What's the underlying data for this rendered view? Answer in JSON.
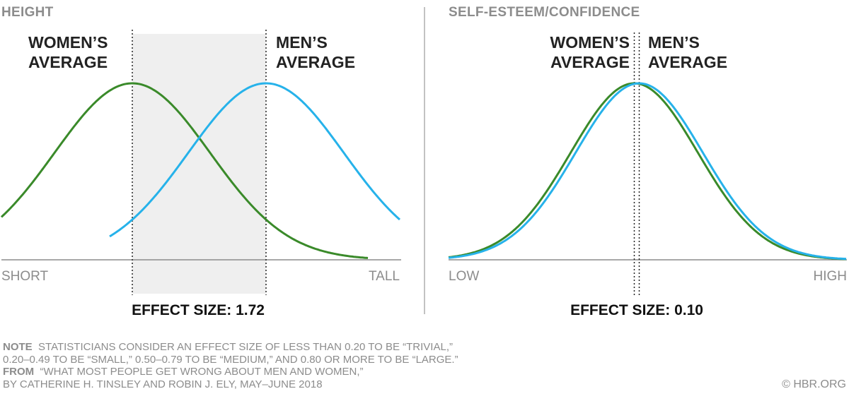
{
  "chart_data": [
    {
      "type": "line",
      "panel_title": "HEIGHT",
      "x_low_label": "SHORT",
      "x_high_label": "TALL",
      "series": [
        {
          "name": "WOMEN'S AVERAGE",
          "label_lines": [
            "WOMEN’S",
            "AVERAGE"
          ],
          "color": "#3a8a2a",
          "mean": 0,
          "sd": 1
        },
        {
          "name": "MEN'S AVERAGE",
          "label_lines": [
            "MEN’S",
            "AVERAGE"
          ],
          "color": "#26b2ea",
          "mean": 1.72,
          "sd": 1
        }
      ],
      "shaded_between_means": true,
      "effect_label": "EFFECT SIZE: 1.72",
      "effect_size": 1.72
    },
    {
      "type": "line",
      "panel_title": "SELF-ESTEEM/CONFIDENCE",
      "x_low_label": "LOW",
      "x_high_label": "HIGH",
      "series": [
        {
          "name": "WOMEN'S AVERAGE",
          "label_lines": [
            "WOMEN’S",
            "AVERAGE"
          ],
          "color": "#3a8a2a",
          "mean": 0,
          "sd": 1
        },
        {
          "name": "MEN'S AVERAGE",
          "label_lines": [
            "MEN’S",
            "AVERAGE"
          ],
          "color": "#26b2ea",
          "mean": 0.1,
          "sd": 1
        }
      ],
      "shaded_between_means": false,
      "effect_label": "EFFECT SIZE: 0.10",
      "effect_size": 0.1
    }
  ],
  "footer": {
    "note_label": "NOTE",
    "note_text_1": "STATISTICIANS CONSIDER AN EFFECT SIZE OF LESS THAN 0.20 TO BE “TRIVIAL,”",
    "note_text_2": "0.20–0.49 TO BE “SMALL,” 0.50–0.79 TO BE “MEDIUM,” AND 0.80 OR MORE TO BE “LARGE.”",
    "from_label": "FROM",
    "from_text_1": "“WHAT MOST PEOPLE GET WRONG ABOUT MEN AND WOMEN,”",
    "from_text_2": "BY CATHERINE H. TINSLEY AND ROBIN J. ELY, MAY–JUNE 2018",
    "credit": "© HBR.ORG"
  },
  "colors": {
    "women": "#3a8a2a",
    "men": "#26b2ea",
    "shade": "#efefef",
    "baseline": "#8c8c8c",
    "muted_text": "#8c8c8c"
  }
}
